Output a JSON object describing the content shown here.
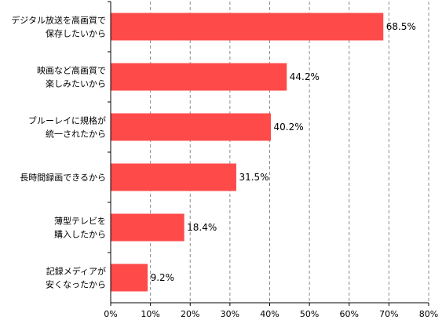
{
  "chart_data": {
    "type": "bar",
    "orientation": "horizontal",
    "categories": [
      [
        "デジタル放送を高画質で",
        "保存したいから"
      ],
      [
        "映画など高画質で",
        "楽しみたいから"
      ],
      [
        "ブルーレイに規格が",
        "統一されたから"
      ],
      [
        "長時間録画できるから"
      ],
      [
        "薄型テレビを",
        "購入したから"
      ],
      [
        "記録メディアが",
        "安くなったから"
      ]
    ],
    "values": [
      68.5,
      44.2,
      40.2,
      31.5,
      18.4,
      9.2
    ],
    "value_labels": [
      "68.5%",
      "44.2%",
      "40.2%",
      "31.5%",
      "18.4%",
      "9.2%"
    ],
    "xlim": [
      0,
      80
    ],
    "x_ticks": [
      0,
      10,
      20,
      30,
      40,
      50,
      60,
      70,
      80
    ],
    "x_tick_labels": [
      "0%",
      "10%",
      "20%",
      "30%",
      "40%",
      "50%",
      "60%",
      "70%",
      "80%"
    ],
    "grid": "vertical-dashed",
    "legend": "none",
    "title": "",
    "xlabel": "",
    "ylabel": "",
    "bar_color": "#ff4a4a"
  }
}
